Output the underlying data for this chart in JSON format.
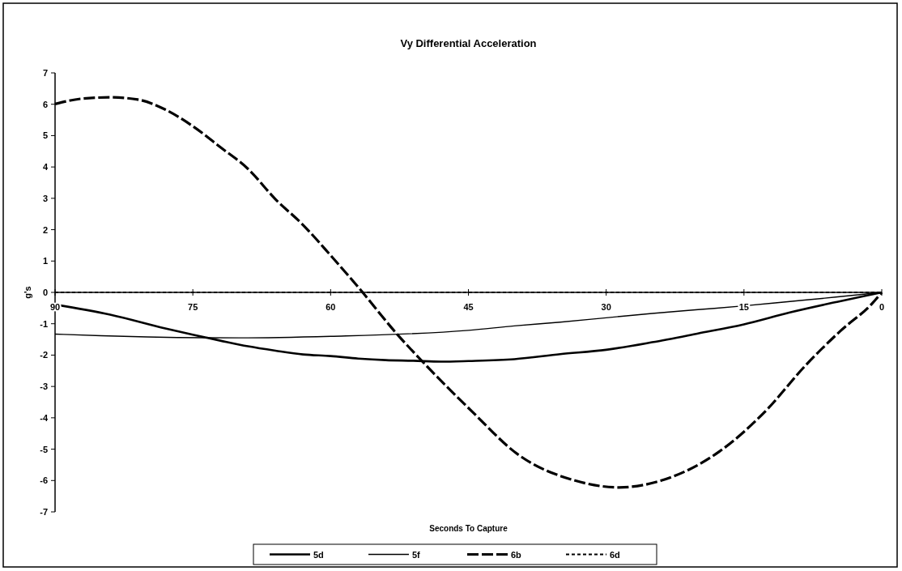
{
  "chart_data": {
    "type": "line",
    "title": "Vy Differential Acceleration",
    "xlabel": "Seconds To Capture",
    "ylabel": "g's",
    "xlim": [
      90,
      0
    ],
    "xticks": [
      90,
      75,
      60,
      45,
      30,
      15,
      0
    ],
    "ylim": [
      -7,
      7
    ],
    "yticks": [
      -7,
      -6,
      -5,
      -4,
      -3,
      -2,
      -1,
      0,
      1,
      2,
      3,
      4,
      5,
      6,
      7
    ],
    "grid": false,
    "legend": "bottom",
    "marker": "none",
    "series": [
      {
        "name": "5d",
        "color": "#000000",
        "line_style": "solid",
        "x": [
          90,
          84,
          78,
          75,
          72,
          69,
          66,
          63,
          60,
          57,
          54,
          51,
          48,
          45,
          40,
          35,
          30,
          25,
          20,
          15,
          10,
          5,
          2,
          0
        ],
        "values": [
          -0.39,
          -0.71,
          -1.15,
          -1.35,
          -1.54,
          -1.72,
          -1.86,
          -1.98,
          -2.03,
          -2.11,
          -2.16,
          -2.18,
          -2.21,
          -2.19,
          -2.13,
          -1.97,
          -1.83,
          -1.59,
          -1.31,
          -1.02,
          -0.64,
          -0.31,
          -0.12,
          0
        ]
      },
      {
        "name": "5f",
        "color": "#000000",
        "line_style": "solid",
        "x": [
          90,
          85,
          80,
          70,
          60,
          45,
          40,
          35,
          30,
          25,
          20,
          15,
          10,
          5,
          0
        ],
        "values": [
          -1.33,
          -1.38,
          -1.42,
          -1.45,
          -1.4,
          -1.21,
          -1.07,
          -0.95,
          -0.81,
          -0.67,
          -0.55,
          -0.43,
          -0.29,
          -0.15,
          0
        ]
      },
      {
        "name": "6b",
        "color": "#000000",
        "line_style": "dashed",
        "x": [
          90,
          87,
          84,
          81,
          78,
          75,
          72,
          69,
          66,
          63,
          60,
          57,
          52.8,
          49.6,
          44.6,
          39.6,
          33.4,
          28.6,
          24,
          17.7,
          12.7,
          8.3,
          4.5,
          1,
          0
        ],
        "values": [
          6.01,
          6.18,
          6.22,
          6.15,
          5.83,
          5.3,
          4.63,
          3.94,
          2.97,
          2.15,
          1.18,
          0.17,
          -1.32,
          -2.33,
          -3.8,
          -5.17,
          -6.0,
          -6.22,
          -6.0,
          -5.08,
          -3.8,
          -2.33,
          -1.23,
          -0.34,
          0
        ]
      },
      {
        "name": "6d",
        "color": "#000000",
        "line_style": "dotted",
        "x": [
          90,
          45,
          0
        ],
        "values": [
          0,
          0,
          0
        ]
      }
    ]
  }
}
